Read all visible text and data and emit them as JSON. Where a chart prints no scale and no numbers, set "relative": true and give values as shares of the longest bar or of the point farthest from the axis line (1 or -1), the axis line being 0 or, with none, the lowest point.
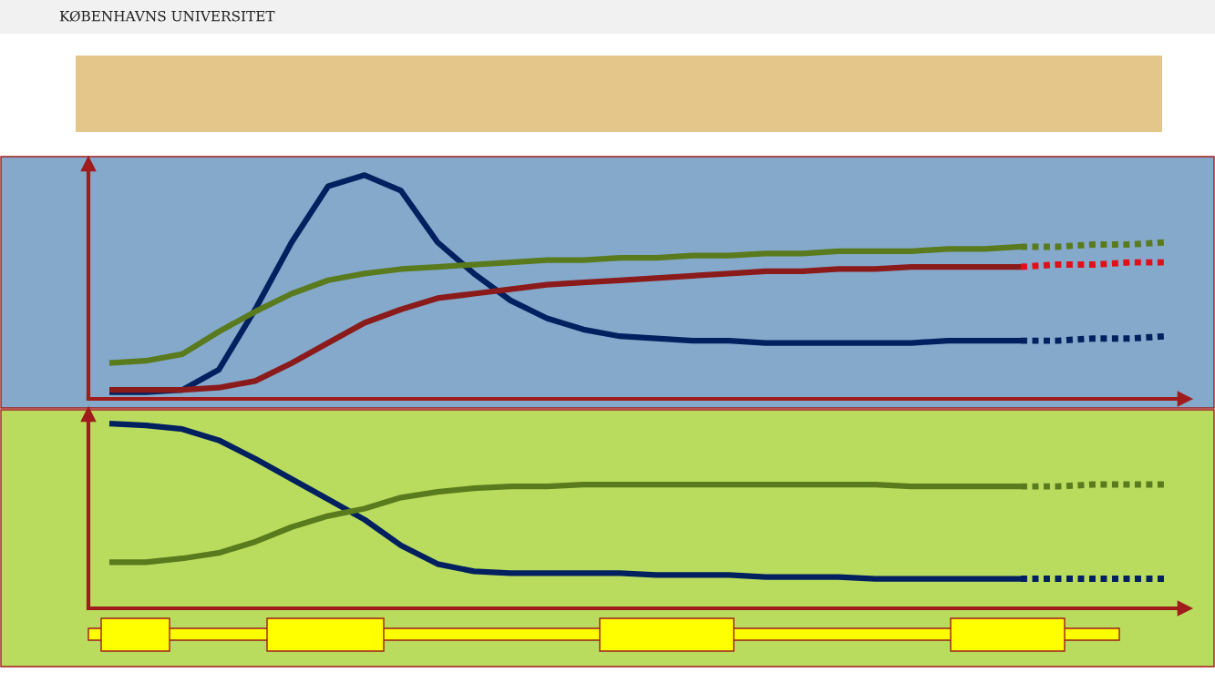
{
  "chart_data": [
    {
      "type": "line",
      "relative": true,
      "annotations": [
        "KØBENHAVNS UNIVERSITET"
      ],
      "categories": [
        null,
        null,
        null,
        null,
        null,
        null,
        null,
        null,
        null,
        null,
        null,
        null,
        null,
        null,
        null,
        null,
        null,
        null,
        null,
        null,
        null,
        null,
        null,
        null,
        null,
        null,
        null,
        null,
        null,
        null
      ],
      "series": [
        {
          "color": "#002060",
          "line_style": "solid",
          "values": [
            0.03,
            0.03,
            0.04,
            0.13,
            0.4,
            0.7,
            0.95,
            1.0,
            0.93,
            0.7,
            0.56,
            0.44,
            0.36,
            0.31,
            0.28,
            0.27,
            0.26,
            0.26,
            0.25,
            0.25,
            0.25,
            0.25,
            0.25,
            0.26,
            0.26,
            0.26,
            null,
            null,
            null,
            null
          ]
        },
        {
          "color": "#002060",
          "line_style": "dotted",
          "values": [
            null,
            null,
            null,
            null,
            null,
            null,
            null,
            null,
            null,
            null,
            null,
            null,
            null,
            null,
            null,
            null,
            null,
            null,
            null,
            null,
            null,
            null,
            null,
            null,
            null,
            0.26,
            0.26,
            0.27,
            0.27,
            0.28
          ]
        },
        {
          "color": "#5a7a1e",
          "line_style": "solid",
          "values": [
            0.16,
            0.17,
            0.2,
            0.3,
            0.39,
            0.47,
            0.53,
            0.56,
            0.58,
            0.59,
            0.6,
            0.61,
            0.62,
            0.62,
            0.63,
            0.63,
            0.64,
            0.64,
            0.65,
            0.65,
            0.66,
            0.66,
            0.66,
            0.67,
            0.67,
            0.68,
            null,
            null,
            null,
            null
          ]
        },
        {
          "color": "#5a7a1e",
          "line_style": "dotted",
          "values": [
            null,
            null,
            null,
            null,
            null,
            null,
            null,
            null,
            null,
            null,
            null,
            null,
            null,
            null,
            null,
            null,
            null,
            null,
            null,
            null,
            null,
            null,
            null,
            null,
            null,
            0.68,
            0.68,
            0.69,
            0.69,
            0.7
          ]
        },
        {
          "color": "#8b1a1a",
          "line_style": "solid",
          "values": [
            0.04,
            0.04,
            0.04,
            0.05,
            0.08,
            0.16,
            0.25,
            0.34,
            0.4,
            0.45,
            0.47,
            0.49,
            0.51,
            0.52,
            0.53,
            0.54,
            0.55,
            0.56,
            0.57,
            0.57,
            0.58,
            0.58,
            0.59,
            0.59,
            0.59,
            0.59,
            null,
            null,
            null,
            null
          ]
        },
        {
          "color": "#e0101a",
          "line_style": "dotted",
          "values": [
            null,
            null,
            null,
            null,
            null,
            null,
            null,
            null,
            null,
            null,
            null,
            null,
            null,
            null,
            null,
            null,
            null,
            null,
            null,
            null,
            null,
            null,
            null,
            null,
            null,
            0.59,
            0.6,
            0.6,
            0.61,
            0.61
          ]
        }
      ]
    },
    {
      "type": "line",
      "relative": true,
      "categories": [
        null,
        null,
        null,
        null,
        null,
        null,
        null,
        null,
        null,
        null,
        null,
        null,
        null,
        null,
        null,
        null,
        null,
        null,
        null,
        null,
        null,
        null,
        null,
        null,
        null,
        null,
        null,
        null,
        null,
        null
      ],
      "series": [
        {
          "color": "#002060",
          "line_style": "solid",
          "values": [
            1.0,
            0.99,
            0.97,
            0.91,
            0.81,
            0.7,
            0.59,
            0.48,
            0.34,
            0.24,
            0.2,
            0.19,
            0.19,
            0.19,
            0.19,
            0.18,
            0.18,
            0.18,
            0.17,
            0.17,
            0.17,
            0.16,
            0.16,
            0.16,
            0.16,
            0.16,
            null,
            null,
            null,
            null
          ]
        },
        {
          "color": "#002060",
          "line_style": "dotted",
          "values": [
            null,
            null,
            null,
            null,
            null,
            null,
            null,
            null,
            null,
            null,
            null,
            null,
            null,
            null,
            null,
            null,
            null,
            null,
            null,
            null,
            null,
            null,
            null,
            null,
            null,
            0.16,
            0.16,
            0.16,
            0.16,
            0.16
          ]
        },
        {
          "color": "#5a7a1e",
          "line_style": "solid",
          "values": [
            0.25,
            0.25,
            0.27,
            0.3,
            0.36,
            0.44,
            0.5,
            0.54,
            0.6,
            0.63,
            0.65,
            0.66,
            0.66,
            0.67,
            0.67,
            0.67,
            0.67,
            0.67,
            0.67,
            0.67,
            0.67,
            0.67,
            0.66,
            0.66,
            0.66,
            0.66,
            null,
            null,
            null,
            null
          ]
        },
        {
          "color": "#5a7a1e",
          "line_style": "dotted",
          "values": [
            null,
            null,
            null,
            null,
            null,
            null,
            null,
            null,
            null,
            null,
            null,
            null,
            null,
            null,
            null,
            null,
            null,
            null,
            null,
            null,
            null,
            null,
            null,
            null,
            null,
            0.66,
            0.66,
            0.67,
            0.67,
            0.67
          ]
        }
      ]
    }
  ]
}
